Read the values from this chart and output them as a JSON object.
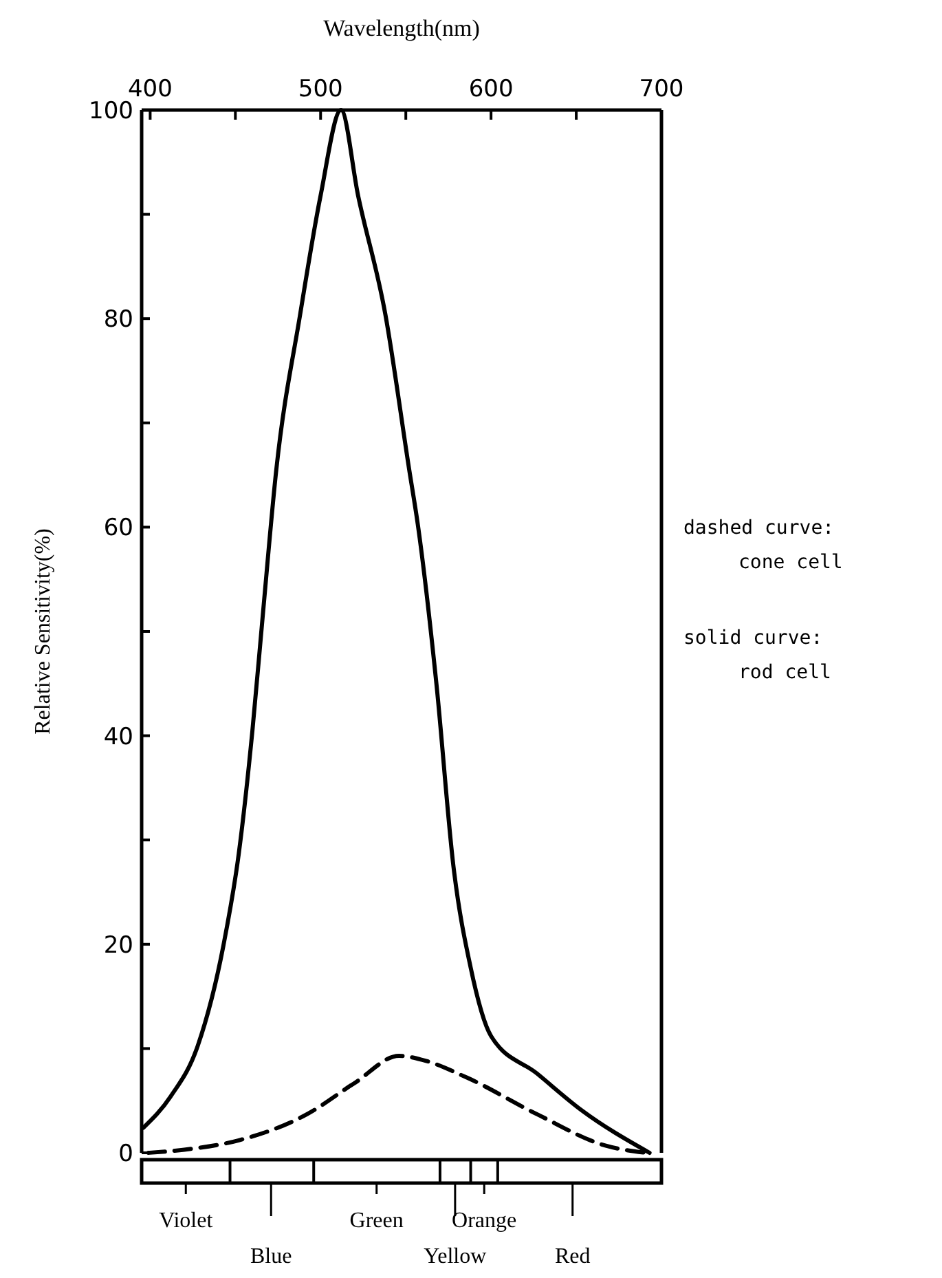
{
  "chart_data": {
    "type": "line",
    "xlabel": "Wavelength(nm)",
    "ylabel": "Relative Sensitivity(%)",
    "xlim": [
      395,
      700
    ],
    "ylim": [
      0,
      100
    ],
    "xticks": [
      400,
      {
        "value": 450,
        "label": null
      },
      500,
      {
        "value": 550,
        "label": null
      },
      600,
      {
        "value": 650,
        "label": null
      },
      700
    ],
    "yticks": [
      0,
      {
        "value": 10,
        "label": null
      },
      20,
      {
        "value": 30,
        "label": null
      },
      40,
      {
        "value": 50,
        "label": null
      },
      60,
      {
        "value": 70,
        "label": null
      },
      80,
      {
        "value": 90,
        "label": null
      },
      100
    ],
    "grid": false,
    "marker": "none",
    "series": [
      {
        "color": "#000000",
        "line_style": "solid",
        "x": [
          396,
          412,
          428,
          443,
          452,
          460,
          466,
          474,
          488,
          500,
          512,
          522,
          538,
          552,
          557,
          568,
          578,
          588,
          600,
          627,
          653,
          693
        ],
        "values": [
          2.4,
          5.4,
          10.3,
          19.9,
          28.7,
          40.5,
          51.4,
          65.5,
          80.4,
          91.8,
          100,
          91.8,
          80.4,
          65.5,
          60.3,
          44.9,
          27.4,
          17.8,
          11.2,
          7.6,
          4.1,
          0
        ]
      },
      {
        "color": "#000000",
        "line_style": "dashed",
        "x": [
          399,
          420,
          452,
          492,
          520,
          546,
          560,
          586,
          627,
          667,
          691
        ],
        "values": [
          0,
          0.3,
          1.2,
          3.7,
          6.7,
          9.3,
          8.9,
          7.2,
          3.7,
          0.7,
          0
        ]
      }
    ],
    "annotations": [
      "dashed curve:\ncone cell",
      "solid curve:\nrod cell",
      "Violet",
      "Blue",
      "Green",
      "Yellow",
      "Orange",
      "Red"
    ]
  }
}
